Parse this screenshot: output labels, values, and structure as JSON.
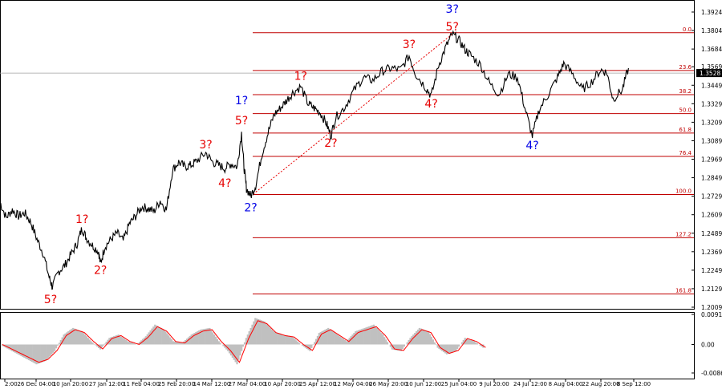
{
  "chart_data": [
    {
      "type": "line",
      "title": "",
      "style": "bars",
      "y_axis": {
        "position": "right",
        "ticks": [
          "1.3924",
          "1.3804",
          "1.3684",
          "1.3569",
          "1.3449",
          "1.3329",
          "1.3209",
          "1.3089",
          "1.2969",
          "1.2849",
          "1.2729",
          "1.2609",
          "1.2489",
          "1.2369",
          "1.2249",
          "1.2129",
          "1.2009"
        ],
        "current_price": "1.3528",
        "ylim": [
          1.2009,
          1.3924
        ]
      },
      "x_axis": {
        "ticks": [
          "2:00",
          "26 Dec 04:00",
          "10 Jan 20:00",
          "27 Jan 12:00",
          "11 Feb 04:00",
          "25 Feb 20:00",
          "14 Mar 12:00",
          "27 Mar 04:00",
          "10 Apr 20:00",
          "25 Apr 12:00",
          "12 May 04:00",
          "26 May 20:00",
          "10 Jun 12:00",
          "25 Jun 04:00",
          "9 Jul 20:00",
          "24 Jul 12:00",
          "8 Aug 04:00",
          "22 Aug 20:00",
          "8 Sep 12:00"
        ]
      },
      "fibonacci_levels": [
        {
          "label": "0.0",
          "price": 1.379
        },
        {
          "label": "23.6",
          "price": 1.3545
        },
        {
          "label": "38.2",
          "price": 1.3388
        },
        {
          "label": "50.0",
          "price": 1.3265
        },
        {
          "label": "61.8",
          "price": 1.3139
        },
        {
          "label": "76.4",
          "price": 1.2987
        },
        {
          "label": "100.0",
          "price": 1.274
        },
        {
          "label": "127.2",
          "price": 1.246
        },
        {
          "label": "161.8",
          "price": 1.2095
        }
      ],
      "wave_labels": [
        {
          "text": "5?",
          "color": "#e60000",
          "x_index": 0.082,
          "price": 1.2035
        },
        {
          "text": "1?",
          "color": "#e60000",
          "x_index": 0.133,
          "price": 1.2555
        },
        {
          "text": "2?",
          "color": "#e60000",
          "x_index": 0.163,
          "price": 1.2225
        },
        {
          "text": "3?",
          "color": "#e60000",
          "x_index": 0.334,
          "price": 1.304
        },
        {
          "text": "4?",
          "color": "#e60000",
          "x_index": 0.365,
          "price": 1.279
        },
        {
          "text": "1?",
          "color": "#0000e6",
          "x_index": 0.392,
          "price": 1.3325
        },
        {
          "text": "5?",
          "color": "#e60000",
          "x_index": 0.392,
          "price": 1.3195
        },
        {
          "text": "2?",
          "color": "#0000e6",
          "x_index": 0.407,
          "price": 1.263
        },
        {
          "text": "1?",
          "color": "#e60000",
          "x_index": 0.488,
          "price": 1.3485
        },
        {
          "text": "2?",
          "color": "#e60000",
          "x_index": 0.537,
          "price": 1.305
        },
        {
          "text": "3?",
          "color": "#e60000",
          "x_index": 0.664,
          "price": 1.369
        },
        {
          "text": "4?",
          "color": "#e60000",
          "x_index": 0.7,
          "price": 1.3305
        },
        {
          "text": "3?",
          "color": "#0000e6",
          "x_index": 0.734,
          "price": 1.392
        },
        {
          "text": "5?",
          "color": "#e60000",
          "x_index": 0.734,
          "price": 1.3805
        },
        {
          "text": "4?",
          "color": "#0000e6",
          "x_index": 0.864,
          "price": 1.3035
        }
      ],
      "price_path": [
        [
          0.0,
          1.269
        ],
        [
          0.01,
          1.259
        ],
        [
          0.02,
          1.264
        ],
        [
          0.03,
          1.26
        ],
        [
          0.04,
          1.262
        ],
        [
          0.05,
          1.256
        ],
        [
          0.06,
          1.245
        ],
        [
          0.07,
          1.236
        ],
        [
          0.08,
          1.22
        ],
        [
          0.085,
          1.214
        ],
        [
          0.095,
          1.224
        ],
        [
          0.105,
          1.228
        ],
        [
          0.115,
          1.235
        ],
        [
          0.125,
          1.242
        ],
        [
          0.133,
          1.252
        ],
        [
          0.14,
          1.246
        ],
        [
          0.15,
          1.241
        ],
        [
          0.16,
          1.237
        ],
        [
          0.163,
          1.229
        ],
        [
          0.17,
          1.24
        ],
        [
          0.18,
          1.245
        ],
        [
          0.19,
          1.249
        ],
        [
          0.2,
          1.244
        ],
        [
          0.21,
          1.255
        ],
        [
          0.22,
          1.26
        ],
        [
          0.23,
          1.266
        ],
        [
          0.24,
          1.265
        ],
        [
          0.25,
          1.263
        ],
        [
          0.26,
          1.27
        ],
        [
          0.27,
          1.264
        ],
        [
          0.28,
          1.29
        ],
        [
          0.29,
          1.295
        ],
        [
          0.3,
          1.292
        ],
        [
          0.31,
          1.293
        ],
        [
          0.32,
          1.296
        ],
        [
          0.334,
          1.301
        ],
        [
          0.345,
          1.295
        ],
        [
          0.355,
          1.293
        ],
        [
          0.365,
          1.291
        ],
        [
          0.375,
          1.294
        ],
        [
          0.385,
          1.292
        ],
        [
          0.392,
          1.314
        ],
        [
          0.396,
          1.292
        ],
        [
          0.4,
          1.278
        ],
        [
          0.407,
          1.273
        ],
        [
          0.415,
          1.28
        ],
        [
          0.425,
          1.3
        ],
        [
          0.435,
          1.314
        ],
        [
          0.445,
          1.326
        ],
        [
          0.455,
          1.33
        ],
        [
          0.465,
          1.335
        ],
        [
          0.475,
          1.34
        ],
        [
          0.488,
          1.344
        ],
        [
          0.5,
          1.333
        ],
        [
          0.51,
          1.33
        ],
        [
          0.52,
          1.327
        ],
        [
          0.53,
          1.32
        ],
        [
          0.537,
          1.312
        ],
        [
          0.545,
          1.324
        ],
        [
          0.56,
          1.331
        ],
        [
          0.575,
          1.342
        ],
        [
          0.59,
          1.35
        ],
        [
          0.605,
          1.348
        ],
        [
          0.62,
          1.354
        ],
        [
          0.635,
          1.356
        ],
        [
          0.65,
          1.355
        ],
        [
          0.664,
          1.364
        ],
        [
          0.675,
          1.352
        ],
        [
          0.69,
          1.344
        ],
        [
          0.7,
          1.338
        ],
        [
          0.712,
          1.358
        ],
        [
          0.724,
          1.37
        ],
        [
          0.734,
          1.378
        ],
        [
          0.745,
          1.374
        ],
        [
          0.755,
          1.368
        ],
        [
          0.765,
          1.364
        ],
        [
          0.78,
          1.358
        ],
        [
          0.795,
          1.346
        ],
        [
          0.81,
          1.339
        ],
        [
          0.825,
          1.352
        ],
        [
          0.84,
          1.35
        ],
        [
          0.852,
          1.33
        ],
        [
          0.864,
          1.312
        ],
        [
          0.875,
          1.329
        ],
        [
          0.89,
          1.339
        ],
        [
          0.905,
          1.35
        ],
        [
          0.915,
          1.359
        ],
        [
          0.93,
          1.352
        ],
        [
          0.945,
          1.342
        ],
        [
          0.96,
          1.347
        ],
        [
          0.975,
          1.355
        ],
        [
          0.985,
          1.353
        ],
        [
          0.995,
          1.336
        ],
        [
          1.01,
          1.342
        ],
        [
          1.02,
          1.356
        ]
      ]
    },
    {
      "type": "area",
      "title": "",
      "y_axis": {
        "ticks": [
          "0.0091",
          "0.00",
          "-0.00862"
        ],
        "ylim": [
          -0.00862,
          0.0091
        ]
      },
      "histogram_color": "#c0c0c0",
      "signal_color": "#ff0000",
      "histogram": [
        [
          0.0,
          0.0
        ],
        [
          0.02,
          -0.0015
        ],
        [
          0.04,
          -0.003
        ],
        [
          0.06,
          -0.0045
        ],
        [
          0.08,
          -0.006
        ],
        [
          0.1,
          -0.005
        ],
        [
          0.12,
          -0.002
        ],
        [
          0.14,
          0.003
        ],
        [
          0.16,
          0.005
        ],
        [
          0.18,
          0.004
        ],
        [
          0.2,
          0.001
        ],
        [
          0.22,
          -0.0015
        ],
        [
          0.24,
          0.002
        ],
        [
          0.26,
          0.003
        ],
        [
          0.28,
          0.001
        ],
        [
          0.3,
          0.0
        ],
        [
          0.32,
          0.0025
        ],
        [
          0.34,
          0.006
        ],
        [
          0.36,
          0.0045
        ],
        [
          0.38,
          0.001
        ],
        [
          0.4,
          0.0005
        ],
        [
          0.42,
          0.003
        ],
        [
          0.44,
          0.0045
        ],
        [
          0.46,
          0.005
        ],
        [
          0.48,
          0.001
        ],
        [
          0.5,
          -0.002
        ],
        [
          0.52,
          -0.006
        ],
        [
          0.54,
          0.002
        ],
        [
          0.56,
          0.008
        ],
        [
          0.58,
          0.007
        ],
        [
          0.6,
          0.004
        ],
        [
          0.62,
          0.003
        ],
        [
          0.64,
          0.0025
        ],
        [
          0.66,
          0.0
        ],
        [
          0.68,
          -0.002
        ],
        [
          0.7,
          0.0035
        ],
        [
          0.72,
          0.005
        ],
        [
          0.74,
          0.003
        ],
        [
          0.76,
          0.001
        ],
        [
          0.78,
          0.004
        ],
        [
          0.8,
          0.005
        ],
        [
          0.82,
          0.006
        ],
        [
          0.84,
          0.003
        ],
        [
          0.86,
          -0.0015
        ],
        [
          0.88,
          -0.002
        ],
        [
          0.9,
          0.002
        ],
        [
          0.92,
          0.005
        ],
        [
          0.94,
          0.004
        ],
        [
          0.96,
          -0.001
        ],
        [
          0.98,
          -0.003
        ],
        [
          1.0,
          -0.002
        ],
        [
          1.02,
          0.002
        ],
        [
          1.04,
          0.001
        ],
        [
          1.06,
          -0.001
        ]
      ]
    }
  ]
}
